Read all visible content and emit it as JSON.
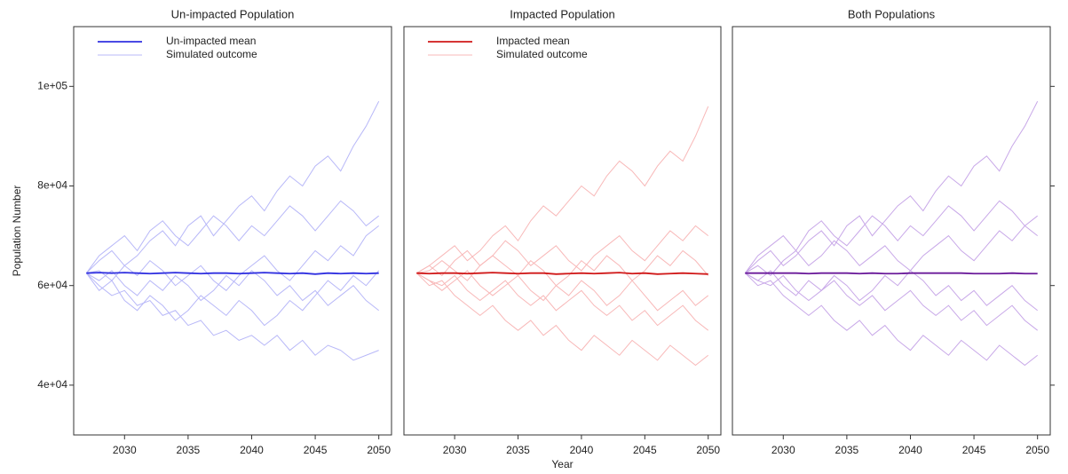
{
  "chart_data": [
    {
      "type": "line",
      "title": "Un-impacted Population",
      "ylabel": "Population Number",
      "x": [
        2027,
        2028,
        2029,
        2030,
        2031,
        2032,
        2033,
        2034,
        2035,
        2036,
        2037,
        2038,
        2039,
        2040,
        2041,
        2042,
        2043,
        2044,
        2045,
        2046,
        2047,
        2048,
        2049,
        2050
      ],
      "xlim": [
        2026,
        2051
      ],
      "xticks": [
        2030,
        2035,
        2040,
        2045,
        2050
      ],
      "ylim": [
        30000,
        112000
      ],
      "yticks": [
        {
          "value": 40000,
          "label": "4e+04"
        },
        {
          "value": 60000,
          "label": "6e+04"
        },
        {
          "value": 80000,
          "label": "8e+04"
        },
        {
          "value": 100000,
          "label": "1e+05"
        }
      ],
      "ytick_side": "left",
      "ytick_labels": true,
      "legend": "upper left",
      "series": [
        {
          "name": "Un-impacted mean",
          "color": "#3030e0",
          "values": [
            62500,
            62600,
            62500,
            62600,
            62500,
            62400,
            62500,
            62600,
            62500,
            62400,
            62500,
            62500,
            62400,
            62500,
            62600,
            62500,
            62400,
            62500,
            62300,
            62500,
            62400,
            62500,
            62400,
            62500
          ]
        },
        {
          "name": "Simulated outcome",
          "color": "#b8b8f8",
          "values": [
            62500,
            65000,
            67000,
            64000,
            66000,
            69000,
            71000,
            68000,
            72000,
            74000,
            70000,
            73000,
            76000,
            78000,
            75000,
            79000,
            82000,
            80000,
            84000,
            86000,
            83000,
            88000,
            92000,
            97000
          ]
        },
        {
          "name": "Simulated outcome",
          "color": "#b8b8f8",
          "values": [
            62500,
            60000,
            58000,
            59000,
            56000,
            57000,
            54000,
            55000,
            52000,
            53000,
            50000,
            51000,
            49000,
            50000,
            48000,
            50000,
            47000,
            49000,
            46000,
            48000,
            47000,
            45000,
            46000,
            47000
          ]
        },
        {
          "name": "Simulated outcome",
          "color": "#b8b8f8",
          "values": [
            62500,
            63000,
            61000,
            64000,
            62000,
            65000,
            63000,
            60000,
            62000,
            64000,
            61000,
            59000,
            62000,
            64000,
            66000,
            63000,
            61000,
            64000,
            67000,
            65000,
            68000,
            66000,
            70000,
            72000
          ]
        },
        {
          "name": "Simulated outcome",
          "color": "#b8b8f8",
          "values": [
            62500,
            61000,
            63000,
            60000,
            58000,
            61000,
            59000,
            62000,
            60000,
            57000,
            59000,
            62000,
            60000,
            63000,
            61000,
            58000,
            60000,
            57000,
            59000,
            56000,
            58000,
            60000,
            57000,
            55000
          ]
        },
        {
          "name": "Simulated outcome",
          "color": "#b8b8f8",
          "values": [
            62500,
            66000,
            68000,
            70000,
            67000,
            71000,
            73000,
            70000,
            68000,
            71000,
            74000,
            72000,
            69000,
            72000,
            70000,
            73000,
            76000,
            74000,
            71000,
            74000,
            77000,
            75000,
            72000,
            74000
          ]
        },
        {
          "name": "Simulated outcome",
          "color": "#b8b8f8",
          "values": [
            62500,
            59000,
            61000,
            57000,
            55000,
            58000,
            56000,
            53000,
            55000,
            58000,
            56000,
            54000,
            57000,
            55000,
            52000,
            54000,
            57000,
            55000,
            58000,
            61000,
            59000,
            62000,
            60000,
            63000
          ]
        }
      ]
    },
    {
      "type": "line",
      "title": "Impacted Population",
      "xlabel": "Year",
      "x": [
        2027,
        2028,
        2029,
        2030,
        2031,
        2032,
        2033,
        2034,
        2035,
        2036,
        2037,
        2038,
        2039,
        2040,
        2041,
        2042,
        2043,
        2044,
        2045,
        2046,
        2047,
        2048,
        2049,
        2050
      ],
      "xlim": [
        2026,
        2051
      ],
      "xticks": [
        2030,
        2035,
        2040,
        2045,
        2050
      ],
      "ylim": [
        30000,
        112000
      ],
      "legend": "upper left",
      "series": [
        {
          "name": "Impacted mean",
          "color": "#d01818",
          "values": [
            62500,
            62400,
            62500,
            62500,
            62400,
            62500,
            62600,
            62500,
            62400,
            62500,
            62500,
            62300,
            62400,
            62500,
            62400,
            62500,
            62600,
            62400,
            62500,
            62300,
            62400,
            62500,
            62400,
            62300
          ]
        },
        {
          "name": "Simulated outcome",
          "color": "#f8b8b8",
          "values": [
            62500,
            64000,
            66000,
            68000,
            65000,
            67000,
            70000,
            72000,
            69000,
            73000,
            76000,
            74000,
            77000,
            80000,
            78000,
            82000,
            85000,
            83000,
            80000,
            84000,
            87000,
            85000,
            90000,
            96000
          ]
        },
        {
          "name": "Simulated outcome",
          "color": "#f8b8b8",
          "values": [
            62500,
            60000,
            61000,
            58000,
            56000,
            54000,
            56000,
            53000,
            51000,
            53000,
            50000,
            52000,
            49000,
            47000,
            50000,
            48000,
            46000,
            49000,
            47000,
            45000,
            48000,
            46000,
            44000,
            46000
          ]
        },
        {
          "name": "Simulated outcome",
          "color": "#f8b8b8",
          "values": [
            62500,
            64000,
            62000,
            65000,
            67000,
            64000,
            66000,
            69000,
            67000,
            64000,
            66000,
            68000,
            65000,
            63000,
            66000,
            68000,
            70000,
            67000,
            65000,
            68000,
            71000,
            69000,
            72000,
            70000
          ]
        },
        {
          "name": "Simulated outcome",
          "color": "#f8b8b8",
          "values": [
            62500,
            61000,
            59000,
            61000,
            63000,
            60000,
            58000,
            60000,
            62000,
            59000,
            57000,
            60000,
            58000,
            61000,
            59000,
            56000,
            58000,
            61000,
            58000,
            55000,
            57000,
            59000,
            56000,
            58000
          ]
        },
        {
          "name": "Simulated outcome",
          "color": "#f8b8b8",
          "values": [
            62500,
            63000,
            65000,
            63000,
            61000,
            64000,
            66000,
            64000,
            62000,
            65000,
            63000,
            60000,
            62000,
            65000,
            63000,
            66000,
            64000,
            61000,
            63000,
            66000,
            64000,
            67000,
            65000,
            62000
          ]
        },
        {
          "name": "Simulated outcome",
          "color": "#f8b8b8",
          "values": [
            62500,
            61000,
            60000,
            62000,
            59000,
            57000,
            59000,
            61000,
            58000,
            56000,
            58000,
            55000,
            57000,
            59000,
            56000,
            54000,
            56000,
            53000,
            55000,
            52000,
            54000,
            56000,
            53000,
            51000
          ]
        }
      ]
    },
    {
      "type": "line",
      "title": "Both Populations",
      "x": [
        2027,
        2028,
        2029,
        2030,
        2031,
        2032,
        2033,
        2034,
        2035,
        2036,
        2037,
        2038,
        2039,
        2040,
        2041,
        2042,
        2043,
        2044,
        2045,
        2046,
        2047,
        2048,
        2049,
        2050
      ],
      "xlim": [
        2026,
        2051
      ],
      "xticks": [
        2030,
        2035,
        2040,
        2045,
        2050
      ],
      "ylim": [
        30000,
        112000
      ],
      "yticks": [
        40000,
        60000,
        80000,
        100000
      ],
      "ytick_side": "right",
      "ytick_labels": false,
      "series": [
        {
          "color": "#6a1a9a",
          "values": [
            62500,
            62500,
            62500,
            62500,
            62500,
            62400,
            62500,
            62500,
            62500,
            62400,
            62500,
            62400,
            62400,
            62500,
            62500,
            62500,
            62500,
            62500,
            62400,
            62400,
            62400,
            62500,
            62400,
            62400
          ]
        },
        {
          "color": "#c8a8e8",
          "values": [
            62500,
            65000,
            67000,
            64000,
            66000,
            69000,
            71000,
            68000,
            72000,
            74000,
            70000,
            73000,
            76000,
            78000,
            75000,
            79000,
            82000,
            80000,
            84000,
            86000,
            83000,
            88000,
            92000,
            97000
          ]
        },
        {
          "color": "#c8a8e8",
          "values": [
            62500,
            60000,
            61000,
            58000,
            56000,
            54000,
            56000,
            53000,
            51000,
            53000,
            50000,
            52000,
            49000,
            47000,
            50000,
            48000,
            46000,
            49000,
            47000,
            45000,
            48000,
            46000,
            44000,
            46000
          ]
        },
        {
          "color": "#c8a8e8",
          "values": [
            62500,
            64000,
            62000,
            65000,
            67000,
            64000,
            66000,
            69000,
            67000,
            64000,
            66000,
            68000,
            65000,
            63000,
            66000,
            68000,
            70000,
            67000,
            65000,
            68000,
            71000,
            69000,
            72000,
            70000
          ]
        },
        {
          "color": "#c8a8e8",
          "values": [
            62500,
            61000,
            63000,
            60000,
            58000,
            61000,
            59000,
            62000,
            60000,
            57000,
            59000,
            62000,
            60000,
            63000,
            61000,
            58000,
            60000,
            57000,
            59000,
            56000,
            58000,
            60000,
            57000,
            55000
          ]
        },
        {
          "color": "#c8a8e8",
          "values": [
            62500,
            66000,
            68000,
            70000,
            67000,
            71000,
            73000,
            70000,
            68000,
            71000,
            74000,
            72000,
            69000,
            72000,
            70000,
            73000,
            76000,
            74000,
            71000,
            74000,
            77000,
            75000,
            72000,
            74000
          ]
        },
        {
          "color": "#c8a8e8",
          "values": [
            62500,
            61000,
            60000,
            62000,
            59000,
            57000,
            59000,
            61000,
            58000,
            56000,
            58000,
            55000,
            57000,
            59000,
            56000,
            54000,
            56000,
            53000,
            55000,
            52000,
            54000,
            56000,
            53000,
            51000
          ]
        }
      ]
    }
  ]
}
